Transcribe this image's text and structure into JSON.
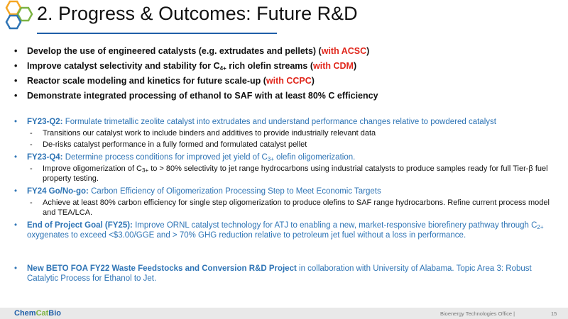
{
  "header": {
    "title": "2. Progress & Outcomes: Future R&D"
  },
  "top_bullets": [
    [
      "Develop the use of engineered catalysts (e.g. extrudates and pellets) (",
      "with ACSC",
      ")"
    ],
    [
      "Improve catalyst selectivity and stability for C",
      "4+",
      " rich olefin streams (",
      "with CDM",
      ")"
    ],
    [
      "Reactor scale modeling and kinetics for future scale-up (",
      "with CCPC",
      ")"
    ],
    [
      "Demonstrate integrated processing of ethanol to SAF with at least 80% C efficiency"
    ]
  ],
  "milestones": [
    {
      "lead": "FY23-Q2:",
      "text": [
        " Formulate trimetallic zeolite catalyst into extrudates and understand performance changes relative to powdered catalyst"
      ],
      "sub": [
        [
          "Transitions our catalyst work to include binders and additives to provide industrially relevant data"
        ],
        [
          "De-risks catalyst performance in a fully formed and formulated catalyst pellet"
        ]
      ]
    },
    {
      "lead": "FY23-Q4:",
      "text": [
        " Determine process conditions for improved jet yield of C",
        "3+",
        " olefin oligomerization."
      ],
      "sub": [
        [
          "Improve oligomerization of C",
          "3+",
          " to > 80% selectivity to jet range hydrocarbons using industrial catalysts to produce samples ready for full Tier-β fuel property testing."
        ]
      ]
    },
    {
      "lead": "FY24 Go/No-go:",
      "text": [
        " Carbon Efficiency of Oligomerization Processing Step to Meet Economic Targets"
      ],
      "sub": [
        [
          "Achieve at least 80% carbon efficiency for single step oligomerization to produce olefins to SAF range hydrocarbons. Refine current process model and TEA/LCA."
        ]
      ]
    },
    {
      "lead": "End of Project Goal (FY25):",
      "text": [
        " Improve ORNL catalyst technology for ATJ to enabling a new, market-responsive biorefinery pathway through C",
        "2+",
        " oxygenates to exceed <$3.00/GGE and > 70% GHG reduction relative to petroleum jet fuel without a loss in performance."
      ]
    }
  ],
  "project": {
    "lead": "New BETO FOA FY22 Waste Feedstocks and Conversion R&D Project",
    "text": " in collaboration with University of Alabama. Topic Area 3: Robust Catalytic Process for Ethanol to Jet."
  },
  "footer": {
    "logo": [
      "Chem",
      "Cat",
      "Bio"
    ],
    "office": "Bioenergy Technologies Office |",
    "page": 15
  }
}
